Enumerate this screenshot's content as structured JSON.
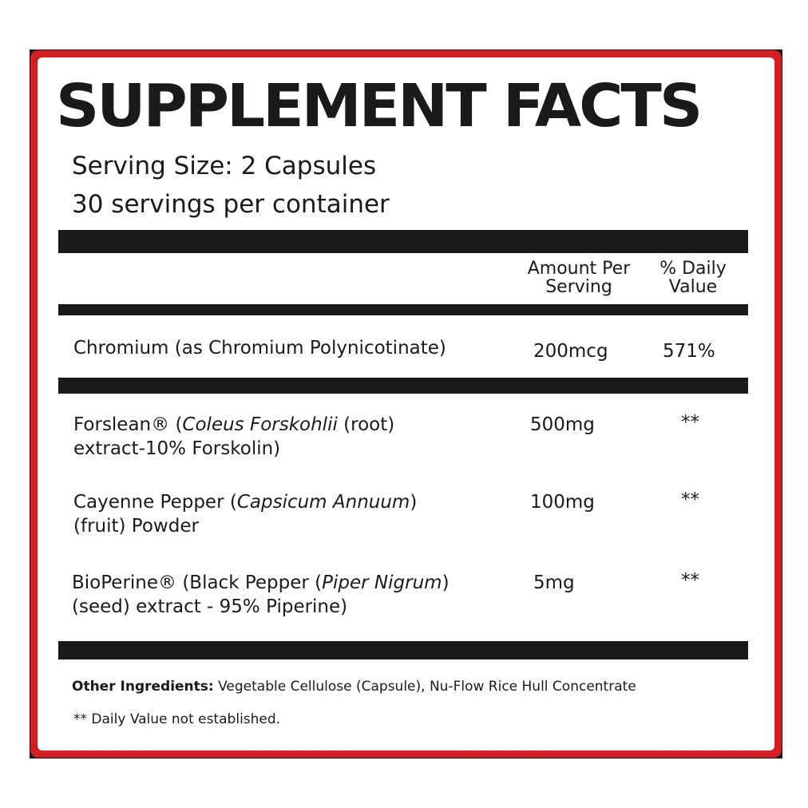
{
  "title": "SUPPLEMENT FACTS",
  "serving_size": "Serving Size: 2 Capsules",
  "servings_per_container": "30 servings per container",
  "columns": {
    "amount_line1": "Amount Per",
    "amount_line2": "Serving",
    "dv_line1": "% Daily",
    "dv_line2": "Value"
  },
  "rows": [
    {
      "name": "Chromium (as Chromium Polynicotinate)",
      "amount": "200mcg",
      "dv": "571%"
    },
    {
      "name_a": "Forslean® (",
      "name_i": "Coleus Forskohlii",
      "name_b": " (root)",
      "name_line2": "extract-10% Forskolin)",
      "amount": "500mg",
      "dv": "**"
    },
    {
      "name_a": "Cayenne Pepper (",
      "name_i": "Capsicum Annuum",
      "name_b": ")",
      "name_line2": "(fruit) Powder",
      "amount": "100mg",
      "dv": "**"
    },
    {
      "name_a": "BioPerine® (Black Pepper (",
      "name_i": "Piper Nigrum",
      "name_b": ")",
      "name_line2": "(seed) extract - 95% Piperine)",
      "amount": "5mg",
      "dv": "**"
    }
  ],
  "other_ingredients_label": "Other Ingredients:",
  "other_ingredients": " Vegetable Cellulose (Capsule), Nu-Flow Rice Hull Concentrate",
  "footnote": "** Daily Value not established.",
  "colors": {
    "border": "#d21f26",
    "text": "#1a1a1a"
  }
}
